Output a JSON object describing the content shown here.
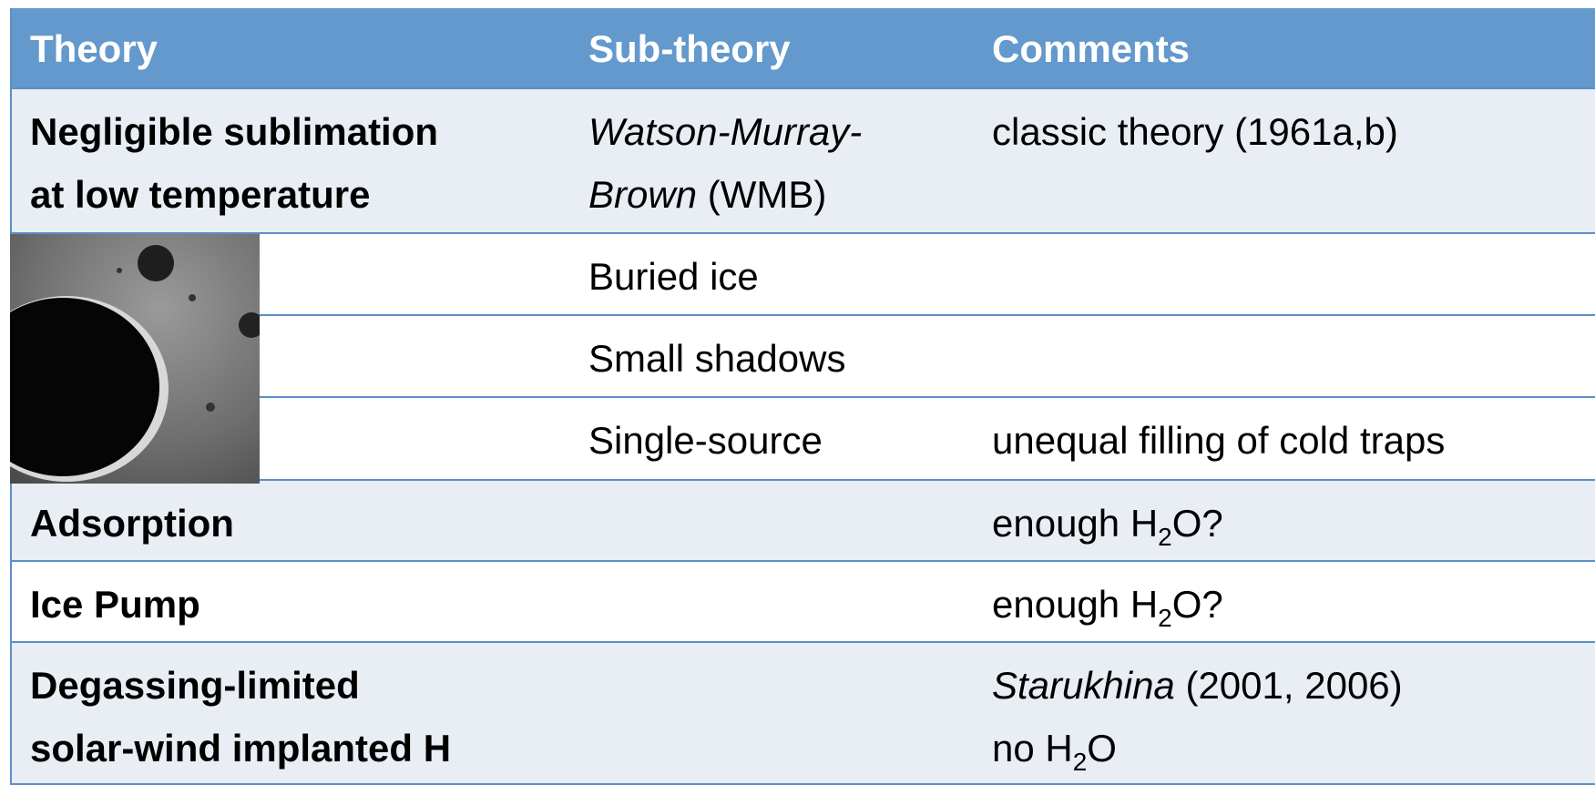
{
  "table": {
    "header": [
      "Theory",
      "Sub-theory",
      "Comments"
    ],
    "rows": [
      [
        [
          [
            {
              "text": "Negligible sublimation"
            }
          ],
          [
            {
              "text": "at low temperature"
            }
          ]
        ],
        [
          [
            {
              "text": "Watson-Murray-",
              "style": "italic"
            }
          ],
          [
            {
              "text": "Brown",
              "style": "italic"
            },
            {
              "text": " (WMB)"
            }
          ]
        ],
        [
          [
            {
              "text": "classic theory (1961a,b)"
            }
          ]
        ]
      ],
      [
        [],
        [
          [
            {
              "text": "Buried ice"
            }
          ]
        ],
        []
      ],
      [
        [],
        [
          [
            {
              "text": "Small shadows"
            }
          ]
        ],
        []
      ],
      [
        [],
        [
          [
            {
              "text": "Single-source"
            }
          ]
        ],
        [
          [
            {
              "text": "unequal filling of cold traps"
            }
          ]
        ]
      ],
      [
        [
          [
            {
              "text": "Adsorption"
            }
          ]
        ],
        [],
        [
          [
            {
              "text": "enough H"
            },
            {
              "text": "2",
              "style": "sub"
            },
            {
              "text": "O?"
            }
          ]
        ]
      ],
      [
        [
          [
            {
              "text": "Ice Pump"
            }
          ]
        ],
        [],
        [
          [
            {
              "text": "enough H"
            },
            {
              "text": "2",
              "style": "sub"
            },
            {
              "text": "O?"
            }
          ]
        ]
      ],
      [
        [
          [
            {
              "text": "Degassing-limited"
            }
          ],
          [
            {
              "text": "solar-wind implanted H"
            }
          ]
        ],
        [],
        [
          [
            {
              "text": "Starukhina",
              "style": "italic"
            },
            {
              "text": " (2001, 2006)"
            }
          ],
          [
            {
              "text": "no H"
            },
            {
              "text": "2",
              "style": "sub"
            },
            {
              "text": "O"
            }
          ]
        ]
      ]
    ]
  }
}
